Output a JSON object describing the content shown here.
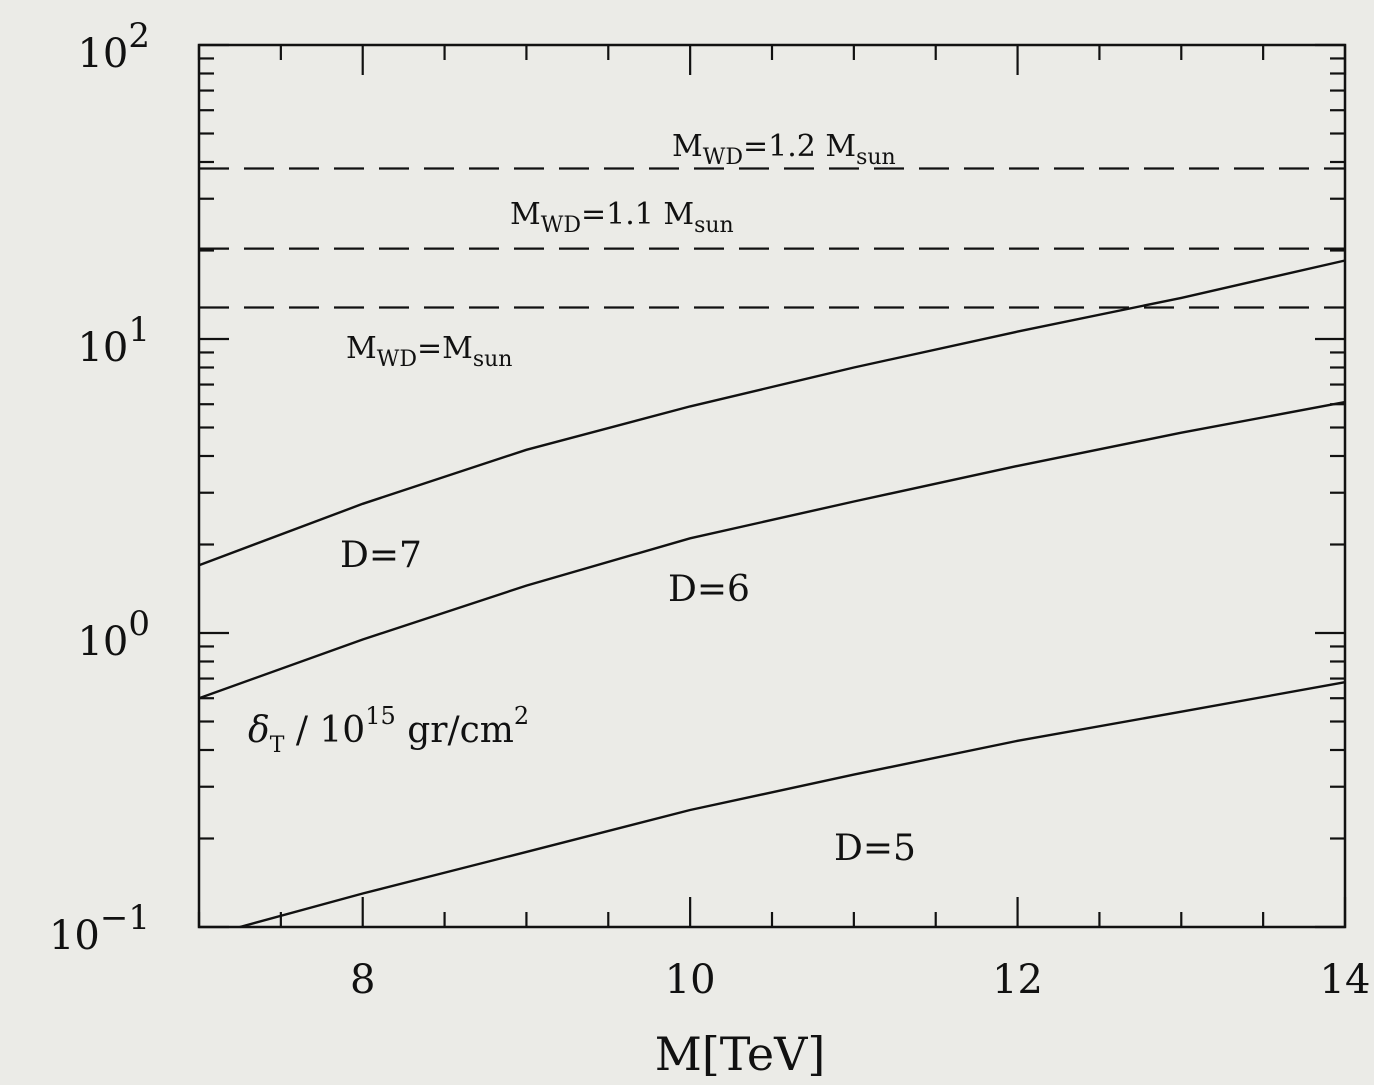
{
  "chart_data": {
    "type": "line",
    "title": "",
    "xlabel": "M[TeV]",
    "ylabel": "δT / 10^15 gr/cm^2",
    "ylabel_parts": {
      "sym": "δ",
      "sub": "T",
      "mid": " / 10",
      "exp": "15",
      "unit": " gr/cm",
      "unit_exp": "2"
    },
    "xlim": [
      7,
      14
    ],
    "ylim": [
      0.1,
      100
    ],
    "yscale": "log",
    "grid": false,
    "x_ticks": [
      8,
      10,
      12,
      14
    ],
    "y_ticks": [
      {
        "value": 0.1,
        "base": "10",
        "exp": "−1"
      },
      {
        "value": 1,
        "base": "10",
        "exp": "0"
      },
      {
        "value": 10,
        "base": "10",
        "exp": "1"
      },
      {
        "value": 100,
        "base": "10",
        "exp": "2"
      }
    ],
    "series": [
      {
        "name": "D=7",
        "style": "solid",
        "x": [
          7,
          8,
          9,
          10,
          11,
          12,
          13,
          14
        ],
        "y": [
          1.7,
          2.75,
          4.2,
          5.9,
          8.0,
          10.6,
          13.8,
          18.5
        ]
      },
      {
        "name": "D=6",
        "style": "solid",
        "x": [
          7,
          8,
          9,
          10,
          11,
          12,
          13,
          14
        ],
        "y": [
          0.6,
          0.95,
          1.45,
          2.1,
          2.8,
          3.7,
          4.8,
          6.1
        ]
      },
      {
        "name": "D=5",
        "style": "solid",
        "x": [
          7.25,
          8,
          9,
          10,
          11,
          12,
          13,
          14
        ],
        "y": [
          0.1,
          0.13,
          0.18,
          0.25,
          0.33,
          0.43,
          0.54,
          0.68
        ]
      },
      {
        "name": "M_WD=1.2 M_sun",
        "style": "dashed",
        "x": [
          7,
          14
        ],
        "y": [
          38,
          38
        ]
      },
      {
        "name": "M_WD=1.1 M_sun",
        "style": "dashed",
        "x": [
          7,
          14
        ],
        "y": [
          20.3,
          20.3
        ]
      },
      {
        "name": "M_WD=M_sun",
        "style": "dashed",
        "x": [
          7,
          14
        ],
        "y": [
          12.8,
          12.8
        ]
      }
    ],
    "annotations": {
      "d7": "D=7",
      "d6": "D=6",
      "d5": "D=5",
      "m12_main": "M",
      "m12_sub": "WD",
      "m12_mid": "=1.2 M",
      "m12_sub2": "sun",
      "m11_main": "M",
      "m11_sub": "WD",
      "m11_mid": "=1.1 M",
      "m11_sub2": "sun",
      "m10_main": "M",
      "m10_sub": "WD",
      "m10_mid": "=M",
      "m10_sub2": "sun"
    }
  }
}
